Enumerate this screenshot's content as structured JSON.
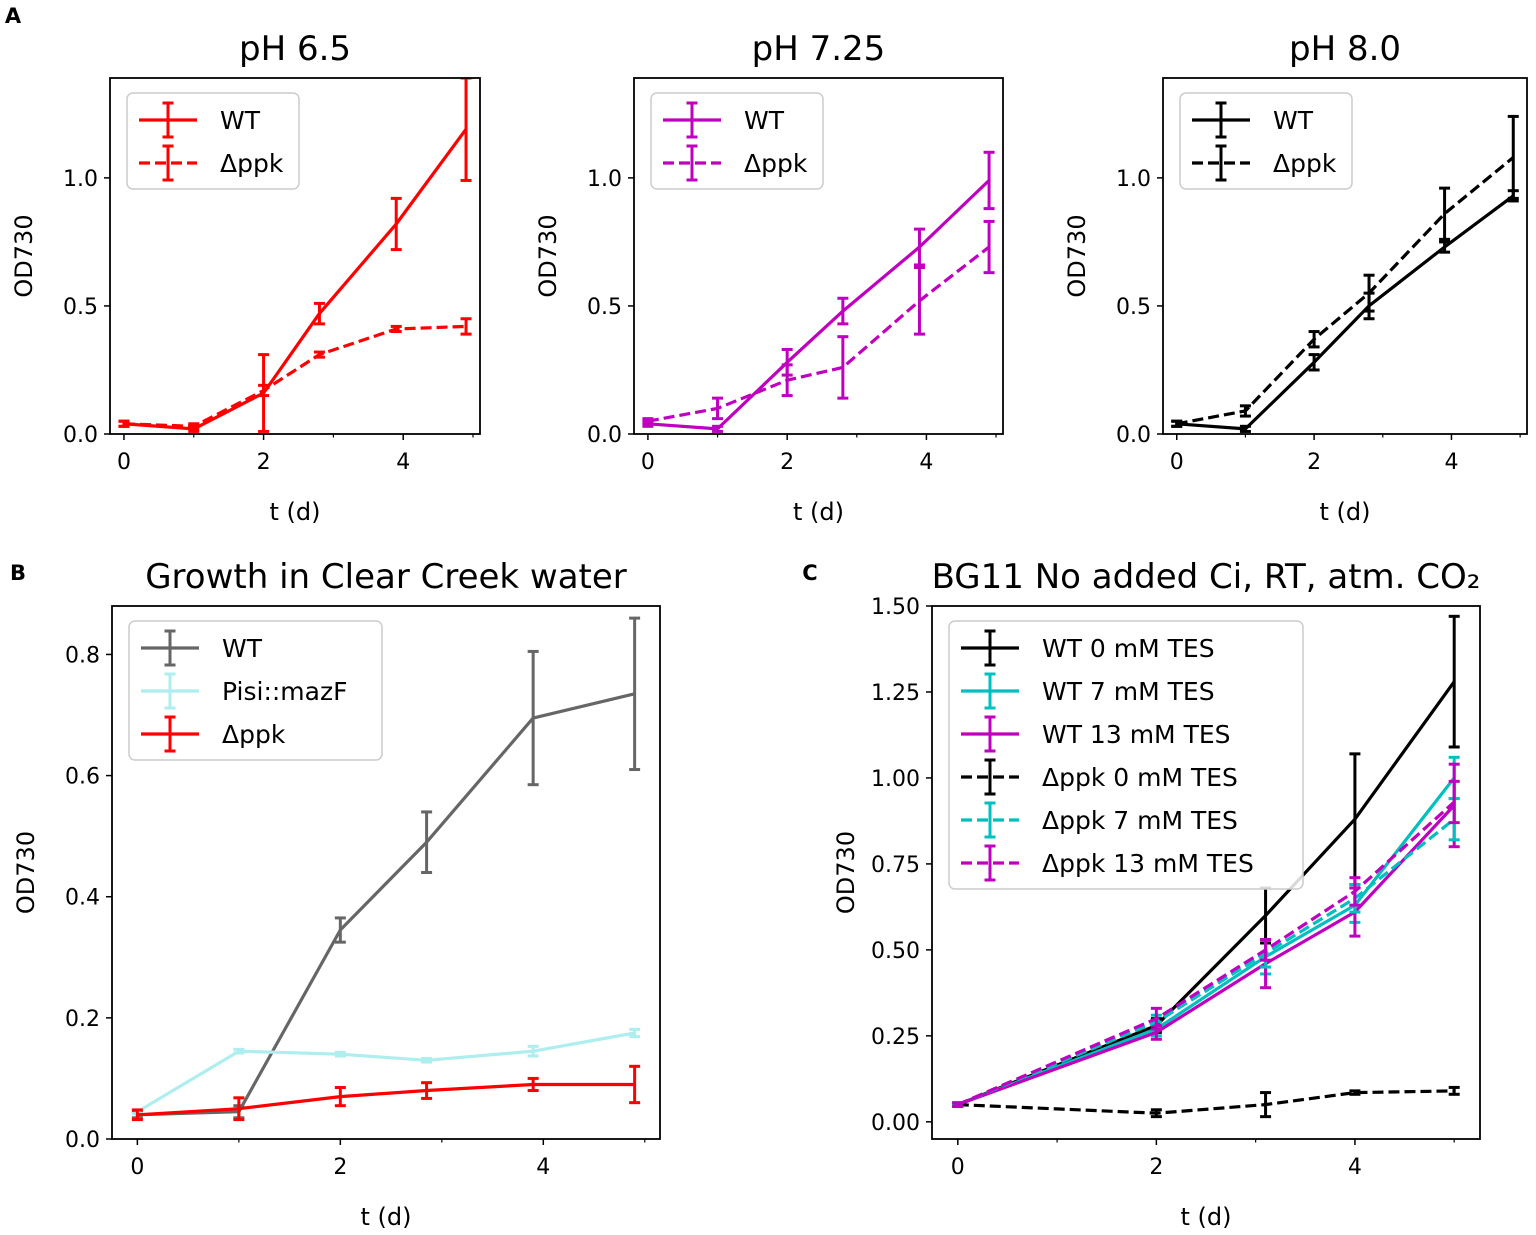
{
  "panel_labels": {
    "a": "A",
    "b": "B",
    "c": "C"
  },
  "chart_data": [
    {
      "id": "a1",
      "type": "line",
      "title": "pH 6.5",
      "xlabel": "t (d)",
      "ylabel": "OD730",
      "xlim": [
        -0.2,
        5.1
      ],
      "ylim": [
        0,
        1.39
      ],
      "xticks": [
        0,
        2,
        4
      ],
      "xticks_minor": [
        1,
        3,
        5
      ],
      "yticks": [
        0.0,
        0.5,
        1.0
      ],
      "ytick_labels": [
        "0.0",
        "0.5",
        "1.0"
      ],
      "legend_position": "top-left",
      "series": [
        {
          "name": "WT",
          "color": "#ff0000",
          "dash": "solid",
          "x": [
            0,
            1,
            2,
            2.8,
            3.9,
            4.9
          ],
          "y": [
            0.04,
            0.02,
            0.16,
            0.47,
            0.82,
            1.19
          ],
          "err": [
            0.01,
            0.01,
            0.15,
            0.04,
            0.1,
            0.2
          ]
        },
        {
          "name": "Δppk",
          "color": "#ff0000",
          "dash": "dashed",
          "x": [
            0,
            1,
            2,
            2.8,
            3.9,
            4.9
          ],
          "y": [
            0.04,
            0.03,
            0.17,
            0.31,
            0.41,
            0.42
          ],
          "err": [
            0.01,
            0.01,
            0.02,
            0.01,
            0.01,
            0.03
          ]
        }
      ]
    },
    {
      "id": "a2",
      "type": "line",
      "title": "pH 7.25",
      "xlabel": "t (d)",
      "ylabel": "OD730",
      "xlim": [
        -0.2,
        5.1
      ],
      "ylim": [
        0,
        1.39
      ],
      "xticks": [
        0,
        2,
        4
      ],
      "xticks_minor": [
        1,
        3,
        5
      ],
      "yticks": [
        0.0,
        0.5,
        1.0
      ],
      "ytick_labels": [
        "0.0",
        "0.5",
        "1.0"
      ],
      "legend_position": "top-left",
      "series": [
        {
          "name": "WT",
          "color": "#bf00bf",
          "dash": "solid",
          "x": [
            0,
            1,
            2,
            2.8,
            3.9,
            4.9
          ],
          "y": [
            0.04,
            0.02,
            0.28,
            0.48,
            0.73,
            0.99
          ],
          "err": [
            0.01,
            0.01,
            0.05,
            0.05,
            0.07,
            0.11
          ]
        },
        {
          "name": "Δppk",
          "color": "#bf00bf",
          "dash": "dashed",
          "x": [
            0,
            1,
            2,
            2.8,
            3.9,
            4.9
          ],
          "y": [
            0.05,
            0.1,
            0.21,
            0.26,
            0.52,
            0.73
          ],
          "err": [
            0.01,
            0.04,
            0.06,
            0.12,
            0.13,
            0.1
          ]
        }
      ]
    },
    {
      "id": "a3",
      "type": "line",
      "title": "pH 8.0",
      "xlabel": "t (d)",
      "ylabel": "OD730",
      "xlim": [
        -0.2,
        5.1
      ],
      "ylim": [
        0,
        1.39
      ],
      "xticks": [
        0,
        2,
        4
      ],
      "xticks_minor": [
        1,
        3,
        5
      ],
      "yticks": [
        0.0,
        0.5,
        1.0
      ],
      "ytick_labels": [
        "0.0",
        "0.5",
        "1.0"
      ],
      "legend_position": "top-left",
      "series": [
        {
          "name": "WT",
          "color": "#000000",
          "dash": "solid",
          "x": [
            0,
            1,
            2,
            2.8,
            3.9,
            4.9
          ],
          "y": [
            0.04,
            0.02,
            0.28,
            0.5,
            0.73,
            0.93
          ],
          "err": [
            0.01,
            0.01,
            0.03,
            0.05,
            0.02,
            0.02
          ]
        },
        {
          "name": "Δppk",
          "color": "#000000",
          "dash": "dashed",
          "x": [
            0,
            1,
            2,
            2.8,
            3.9,
            4.9
          ],
          "y": [
            0.04,
            0.09,
            0.37,
            0.55,
            0.86,
            1.08
          ],
          "err": [
            0.01,
            0.02,
            0.03,
            0.07,
            0.1,
            0.16
          ]
        }
      ]
    },
    {
      "id": "b",
      "type": "line",
      "title": "Growth in Clear Creek water",
      "xlabel": "t (d)",
      "ylabel": "OD730",
      "xlim": [
        -0.25,
        5.15
      ],
      "ylim": [
        0,
        0.88
      ],
      "xticks": [
        0,
        2,
        4
      ],
      "xticks_minor": [
        1,
        3,
        5
      ],
      "yticks": [
        0.0,
        0.2,
        0.4,
        0.6,
        0.8
      ],
      "ytick_labels": [
        "0.0",
        "0.2",
        "0.4",
        "0.6",
        "0.8"
      ],
      "legend_position": "top-left",
      "series": [
        {
          "name": "WT",
          "color": "#666666",
          "dash": "solid",
          "x": [
            0,
            1,
            2,
            2.85,
            3.9,
            4.9
          ],
          "y": [
            0.04,
            0.045,
            0.345,
            0.49,
            0.695,
            0.735
          ],
          "err": [
            0.005,
            0.01,
            0.02,
            0.05,
            0.11,
            0.125
          ]
        },
        {
          "name": "Pisi::mazF",
          "color": "#aeeeee",
          "dash": "solid",
          "x": [
            0,
            1,
            2,
            2.85,
            3.9,
            4.9
          ],
          "y": [
            0.045,
            0.145,
            0.14,
            0.13,
            0.145,
            0.175
          ],
          "err": [
            0.003,
            0.003,
            0.003,
            0.003,
            0.008,
            0.006
          ]
        },
        {
          "name": "Δppk",
          "color": "#ff0000",
          "dash": "solid",
          "x": [
            0,
            1,
            2,
            2.85,
            3.9,
            4.9
          ],
          "y": [
            0.04,
            0.05,
            0.07,
            0.08,
            0.09,
            0.09
          ],
          "err": [
            0.008,
            0.018,
            0.015,
            0.013,
            0.01,
            0.03
          ]
        }
      ]
    },
    {
      "id": "c",
      "type": "line",
      "title": "BG11 No added Ci, RT, atm. CO₂",
      "xlabel": "t (d)",
      "ylabel": "OD730",
      "xlim": [
        -0.26,
        5.26
      ],
      "ylim": [
        -0.05,
        1.5
      ],
      "xticks": [
        0,
        2,
        4
      ],
      "xticks_minor": [
        1,
        3,
        5
      ],
      "yticks": [
        0.0,
        0.25,
        0.5,
        0.75,
        1.0,
        1.25,
        1.5
      ],
      "ytick_labels": [
        "0.00",
        "0.25",
        "0.50",
        "0.75",
        "1.00",
        "1.25",
        "1.50"
      ],
      "legend_position": "top-left",
      "series": [
        {
          "name": "WT 0 mM TES",
          "color": "#000000",
          "dash": "solid",
          "x": [
            0,
            2,
            3.1,
            4,
            5
          ],
          "y": [
            0.05,
            0.28,
            0.6,
            0.88,
            1.28
          ],
          "err": [
            0.005,
            0.02,
            0.08,
            0.19,
            0.19
          ]
        },
        {
          "name": "WT 7 mM TES",
          "color": "#00bfbf",
          "dash": "solid",
          "x": [
            0,
            2,
            3.1,
            4,
            5
          ],
          "y": [
            0.05,
            0.27,
            0.48,
            0.63,
            1.0
          ],
          "err": [
            0.005,
            0.02,
            0.05,
            0.05,
            0.06
          ]
        },
        {
          "name": "WT 13 mM TES",
          "color": "#bf00bf",
          "dash": "solid",
          "x": [
            0,
            2,
            3.1,
            4,
            5
          ],
          "y": [
            0.05,
            0.26,
            0.46,
            0.61,
            0.92
          ],
          "err": [
            0.005,
            0.02,
            0.07,
            0.07,
            0.12
          ]
        },
        {
          "name": "Δppk 0 mM TES",
          "color": "#000000",
          "dash": "dashed",
          "x": [
            0,
            2,
            3.1,
            4,
            5
          ],
          "y": [
            0.05,
            0.025,
            0.05,
            0.085,
            0.09
          ],
          "err": [
            0.005,
            0.01,
            0.035,
            0.005,
            0.01
          ]
        },
        {
          "name": "Δppk 7 mM TES",
          "color": "#00bfbf",
          "dash": "dashed",
          "x": [
            0,
            2,
            3.1,
            4,
            5
          ],
          "y": [
            0.05,
            0.29,
            0.49,
            0.65,
            0.88
          ],
          "err": [
            0.005,
            0.02,
            0.04,
            0.04,
            0.06
          ]
        },
        {
          "name": "Δppk 13 mM TES",
          "color": "#bf00bf",
          "dash": "dashed",
          "x": [
            0,
            2,
            3.1,
            4,
            5
          ],
          "y": [
            0.05,
            0.3,
            0.5,
            0.67,
            0.93
          ],
          "err": [
            0.005,
            0.03,
            0.03,
            0.04,
            0.06
          ]
        }
      ]
    }
  ]
}
